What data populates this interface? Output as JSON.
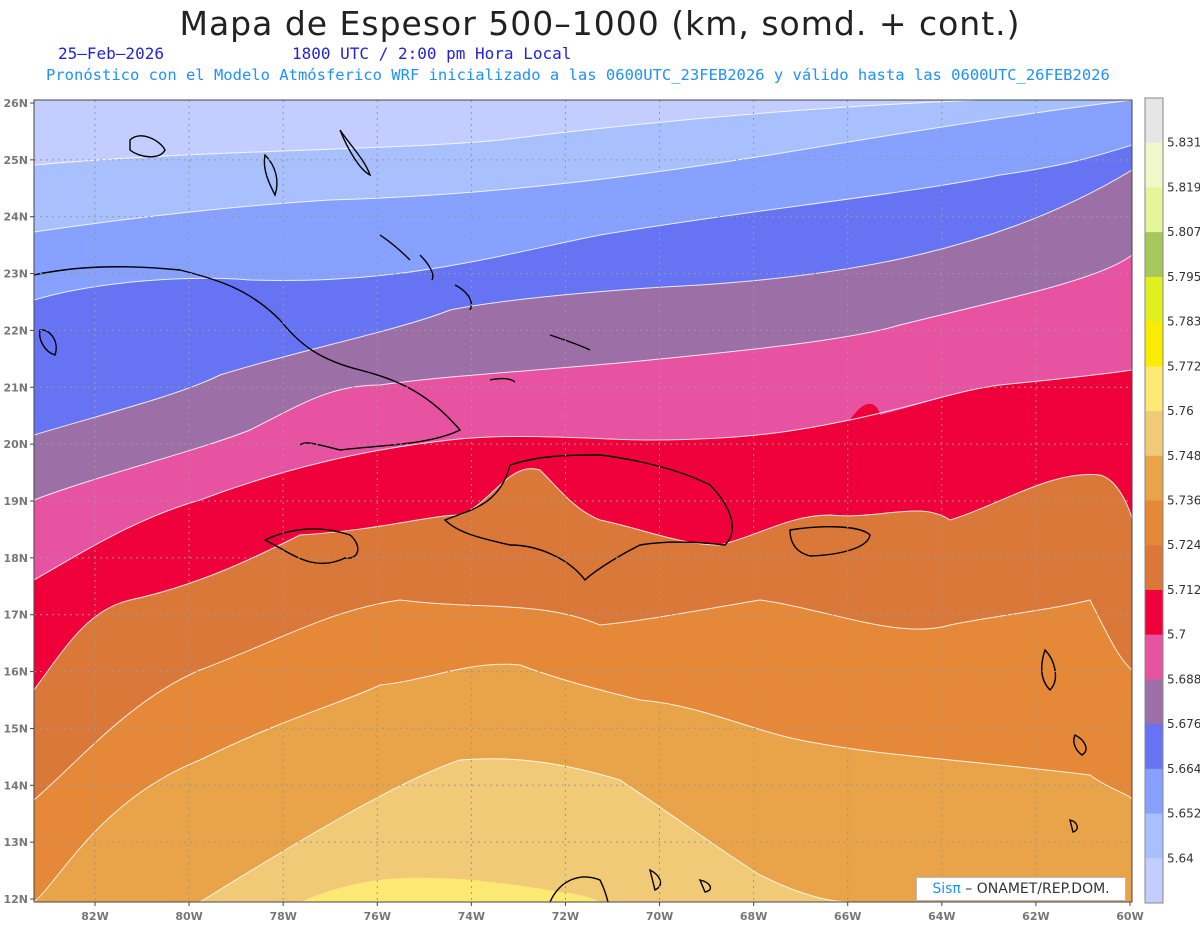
{
  "header": {
    "title": "Mapa de Espesor 500–1000 (km, somd. + cont.)",
    "date": "25–Feb–2026",
    "time": "1800 UTC / 2:00 pm Hora Local",
    "forecast": "Pronóstico con el Modelo Atmósferico WRF inicializado a las 0600UTC_23FEB2026 y válido hasta las  0600UTC_26FEB2026"
  },
  "map": {
    "lat_ticks": [
      "26N",
      "25N",
      "24N",
      "23N",
      "22N",
      "21N",
      "20N",
      "19N",
      "18N",
      "17N",
      "16N",
      "15N",
      "14N",
      "13N",
      "12N"
    ],
    "lon_ticks": [
      "82W",
      "80W",
      "78W",
      "76W",
      "74W",
      "72W",
      "70W",
      "68W",
      "66W",
      "64W",
      "62W",
      "60W"
    ],
    "lat_range": [
      12,
      26
    ],
    "lon_range": [
      -83,
      -60
    ]
  },
  "colorbar": {
    "labels": [
      "5.831",
      "5.819",
      "5.807",
      "5.795",
      "5.783",
      "5.772",
      "5.76",
      "5.748",
      "5.736",
      "5.724",
      "5.712",
      "5.7",
      "5.688",
      "5.676",
      "5.664",
      "5.652",
      "5.64"
    ],
    "colors_top_to_bottom": [
      "#e6e6e6",
      "#f2f7c9",
      "#e4f59a",
      "#a6c75c",
      "#e2ef1e",
      "#f9ec00",
      "#fbe973",
      "#f1ca78",
      "#e9a348",
      "#e58837",
      "#d97838",
      "#f0003a",
      "#e753a0",
      "#9c6fa6",
      "#6673f2",
      "#86a1ff",
      "#a9c0ff",
      "#c3cdff"
    ]
  },
  "credit": {
    "sis": "Sisπ",
    "rest": " – ONAMET/REP.DOM."
  }
}
